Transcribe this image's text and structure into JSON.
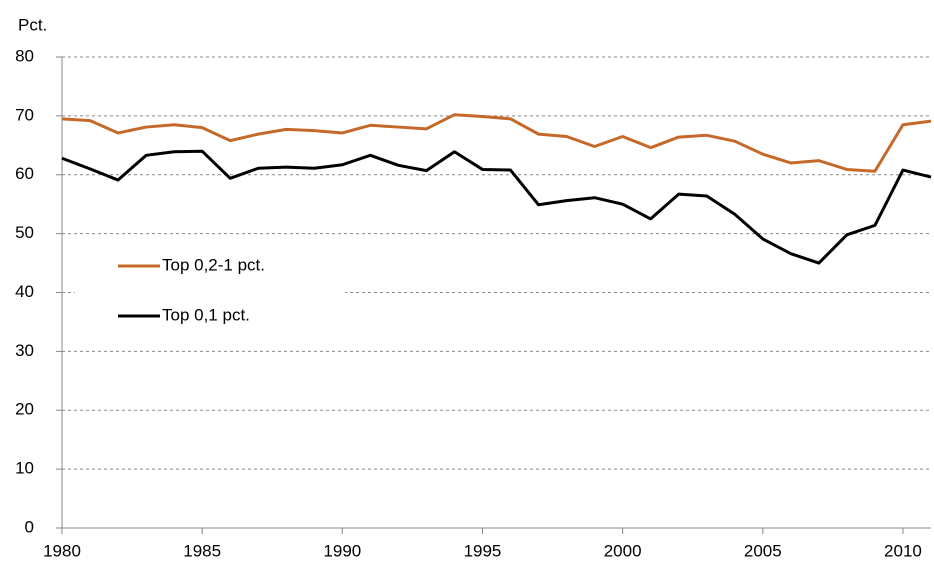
{
  "chart_data": {
    "type": "line",
    "y_label": "Pct.",
    "x": [
      1980,
      1981,
      1982,
      1983,
      1984,
      1985,
      1986,
      1987,
      1988,
      1989,
      1990,
      1991,
      1992,
      1993,
      1994,
      1995,
      1996,
      1997,
      1998,
      1999,
      2000,
      2001,
      2002,
      2003,
      2004,
      2005,
      2006,
      2007,
      2008,
      2009,
      2010,
      2011
    ],
    "series": [
      {
        "name": "Top 0,2-1 pct.",
        "color": "#c5692a",
        "values": [
          69.5,
          69.2,
          67.1,
          68.1,
          68.5,
          68.0,
          65.8,
          66.9,
          67.7,
          67.5,
          67.1,
          68.4,
          68.1,
          67.8,
          70.2,
          69.9,
          69.5,
          66.9,
          66.5,
          64.8,
          66.5,
          64.6,
          66.4,
          66.7,
          65.7,
          63.5,
          62.0,
          62.4,
          60.9,
          60.6,
          68.5,
          69.1
        ]
      },
      {
        "name": "Top 0,1 pct.",
        "color": "#000000",
        "values": [
          62.8,
          61.0,
          59.1,
          63.3,
          63.9,
          64.0,
          59.4,
          61.1,
          61.3,
          61.1,
          61.7,
          63.3,
          61.6,
          60.7,
          63.9,
          60.9,
          60.8,
          54.9,
          55.6,
          56.1,
          55.0,
          52.5,
          56.7,
          56.4,
          53.3,
          49.1,
          46.6,
          45.0,
          49.8,
          51.4,
          60.8,
          59.6
        ]
      }
    ],
    "xlim": [
      1980,
      2011
    ],
    "xticks": [
      1980,
      1985,
      1990,
      1995,
      2000,
      2005,
      2010
    ],
    "ylim": [
      0,
      80
    ],
    "yticks": [
      0,
      10,
      20,
      30,
      40,
      50,
      60,
      70,
      80
    ],
    "grid": true
  }
}
